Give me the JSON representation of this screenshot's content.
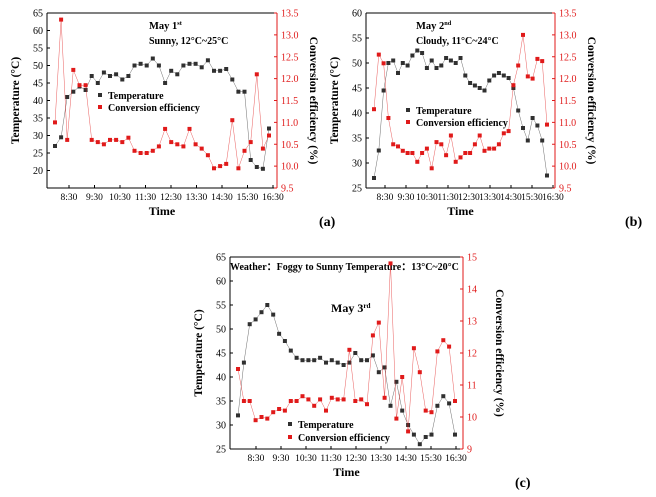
{
  "figure": {
    "panel_labels": [
      "(a)",
      "(b)",
      "(c)"
    ]
  },
  "colors": {
    "temperature": "#303030",
    "efficiency": "#e01a1a",
    "right_axis": "#e01a1a"
  },
  "chart_data": [
    {
      "type": "line",
      "panel": "(a)",
      "title": "May 1",
      "title_sup": "st",
      "subtitle": "Sunny, 12°C~25°C",
      "xlabel": "Time",
      "ylabel": "Temperature (°C)",
      "y2label": "Conversion efficiency (%)",
      "x_tick_labels": [
        "8:30",
        "9:30",
        "10:30",
        "11:30",
        "12:30",
        "13:30",
        "14:30",
        "15:30",
        "16:30"
      ],
      "ylim": [
        15,
        65
      ],
      "yticks": [
        20,
        25,
        30,
        35,
        40,
        45,
        50,
        55,
        60,
        65
      ],
      "y2lim": [
        9.5,
        13.5
      ],
      "y2ticks": [
        9.5,
        10.0,
        10.5,
        11.0,
        11.5,
        12.0,
        12.5,
        13.0,
        13.5
      ],
      "legend": [
        "Temperature",
        "Conversion efficiency"
      ],
      "series": [
        {
          "name": "Temperature",
          "axis": "left",
          "values": [
            27,
            29.5,
            41,
            42.5,
            44,
            43,
            47,
            45,
            48,
            47,
            47.5,
            46,
            47,
            50,
            50.5,
            50,
            52,
            50,
            45,
            48.5,
            47.5,
            50,
            50.5,
            50.5,
            49.5,
            51.5,
            48.5,
            48.5,
            49,
            46,
            42.5,
            42.5,
            23,
            21,
            20.5,
            32
          ]
        },
        {
          "name": "Conversion efficiency",
          "axis": "right",
          "values": [
            11.0,
            13.35,
            10.6,
            12.2,
            11.85,
            11.85,
            10.6,
            10.55,
            10.5,
            10.6,
            10.6,
            10.55,
            10.65,
            10.35,
            10.3,
            10.3,
            10.35,
            10.45,
            10.85,
            10.55,
            10.5,
            10.45,
            10.85,
            10.5,
            10.4,
            10.25,
            9.95,
            10.0,
            10.05,
            11.05,
            9.95,
            10.35,
            10.55,
            12.1,
            10.4,
            10.7
          ]
        }
      ]
    },
    {
      "type": "line",
      "panel": "(b)",
      "title": "May 2",
      "title_sup": "nd",
      "subtitle": "Cloudy, 11°C~24°C",
      "xlabel": "Time",
      "ylabel": "Temperature (°C)",
      "y2label": "Conversion efficiency (%)",
      "x_tick_labels": [
        "8:30",
        "9:30",
        "10:30",
        "11:30",
        "12:30",
        "13:30",
        "14:30",
        "15:30",
        "16:30"
      ],
      "ylim": [
        25,
        60
      ],
      "yticks": [
        25,
        30,
        35,
        40,
        45,
        50,
        55,
        60
      ],
      "y2lim": [
        9.5,
        13.5
      ],
      "y2ticks": [
        9.5,
        10.0,
        10.5,
        11.0,
        11.5,
        12.0,
        12.5,
        13.0,
        13.5
      ],
      "legend": [
        "Temperature",
        "Conversion efficiency"
      ],
      "series": [
        {
          "name": "Temperature",
          "axis": "left",
          "values": [
            27,
            32.5,
            44.5,
            50,
            50.5,
            48,
            50,
            49.5,
            51.5,
            52.5,
            52,
            49,
            50.5,
            49,
            49.5,
            51,
            50.5,
            50,
            51,
            47.5,
            46,
            45.5,
            45,
            44.5,
            46.5,
            47.5,
            48,
            47.5,
            47,
            45,
            40.5,
            37,
            34.5,
            39,
            37.5,
            34.5,
            27.5
          ]
        },
        {
          "name": "Conversion efficiency",
          "axis": "right",
          "values": [
            11.3,
            12.55,
            12.35,
            11.1,
            10.5,
            10.45,
            10.35,
            10.3,
            10.3,
            10.1,
            10.3,
            10.4,
            9.95,
            10.55,
            10.5,
            10.25,
            10.7,
            10.1,
            10.2,
            10.3,
            10.3,
            10.5,
            10.7,
            10.35,
            10.4,
            10.4,
            10.5,
            10.75,
            10.8,
            11.85,
            12.3,
            13.0,
            12.05,
            12.0,
            12.45,
            12.4,
            10.95
          ]
        }
      ]
    },
    {
      "type": "line",
      "panel": "(c)",
      "title": "May 3",
      "title_sup": "rd",
      "subtitle": "Weather：Foggy to Sunny   Temperature：13°C~20°C",
      "xlabel": "Time",
      "ylabel": "Temperature (°C)",
      "y2label": "Conversion efficiency (%)",
      "x_tick_labels": [
        "8:30",
        "9:30",
        "10:30",
        "11:30",
        "12:30",
        "13:30",
        "14:30",
        "15:30",
        "16:30"
      ],
      "ylim": [
        25,
        65
      ],
      "yticks": [
        25,
        30,
        35,
        40,
        45,
        50,
        55,
        60,
        65
      ],
      "y2lim": [
        9,
        15
      ],
      "y2ticks": [
        9,
        10,
        11,
        12,
        13,
        14,
        15
      ],
      "legend": [
        "Temperature",
        "Conversion efficiency"
      ],
      "series": [
        {
          "name": "Temperature",
          "axis": "left",
          "values": [
            32,
            43,
            51,
            52,
            53.5,
            55,
            53,
            49,
            47.5,
            45.5,
            44,
            43.5,
            43.5,
            43.5,
            44,
            43,
            43.5,
            43,
            42.5,
            43,
            45,
            43.5,
            43.5,
            44.5,
            41,
            42,
            34,
            39,
            33,
            30,
            28,
            26,
            27.5,
            28,
            34,
            36,
            34.5,
            28
          ]
        },
        {
          "name": "Conversion efficiency",
          "axis": "right",
          "values": [
            11.5,
            10.5,
            10.5,
            9.9,
            10.0,
            9.95,
            10.15,
            10.25,
            10.2,
            10.5,
            10.5,
            10.65,
            10.55,
            10.35,
            10.55,
            10.2,
            10.6,
            10.55,
            10.55,
            12.1,
            10.5,
            10.55,
            10.4,
            12.55,
            12.95,
            10.6,
            14.8,
            9.95,
            11.25,
            9.55,
            12.15,
            11.4,
            10.2,
            10.15,
            12.05,
            12.4,
            12.2,
            10.5
          ]
        }
      ]
    }
  ]
}
